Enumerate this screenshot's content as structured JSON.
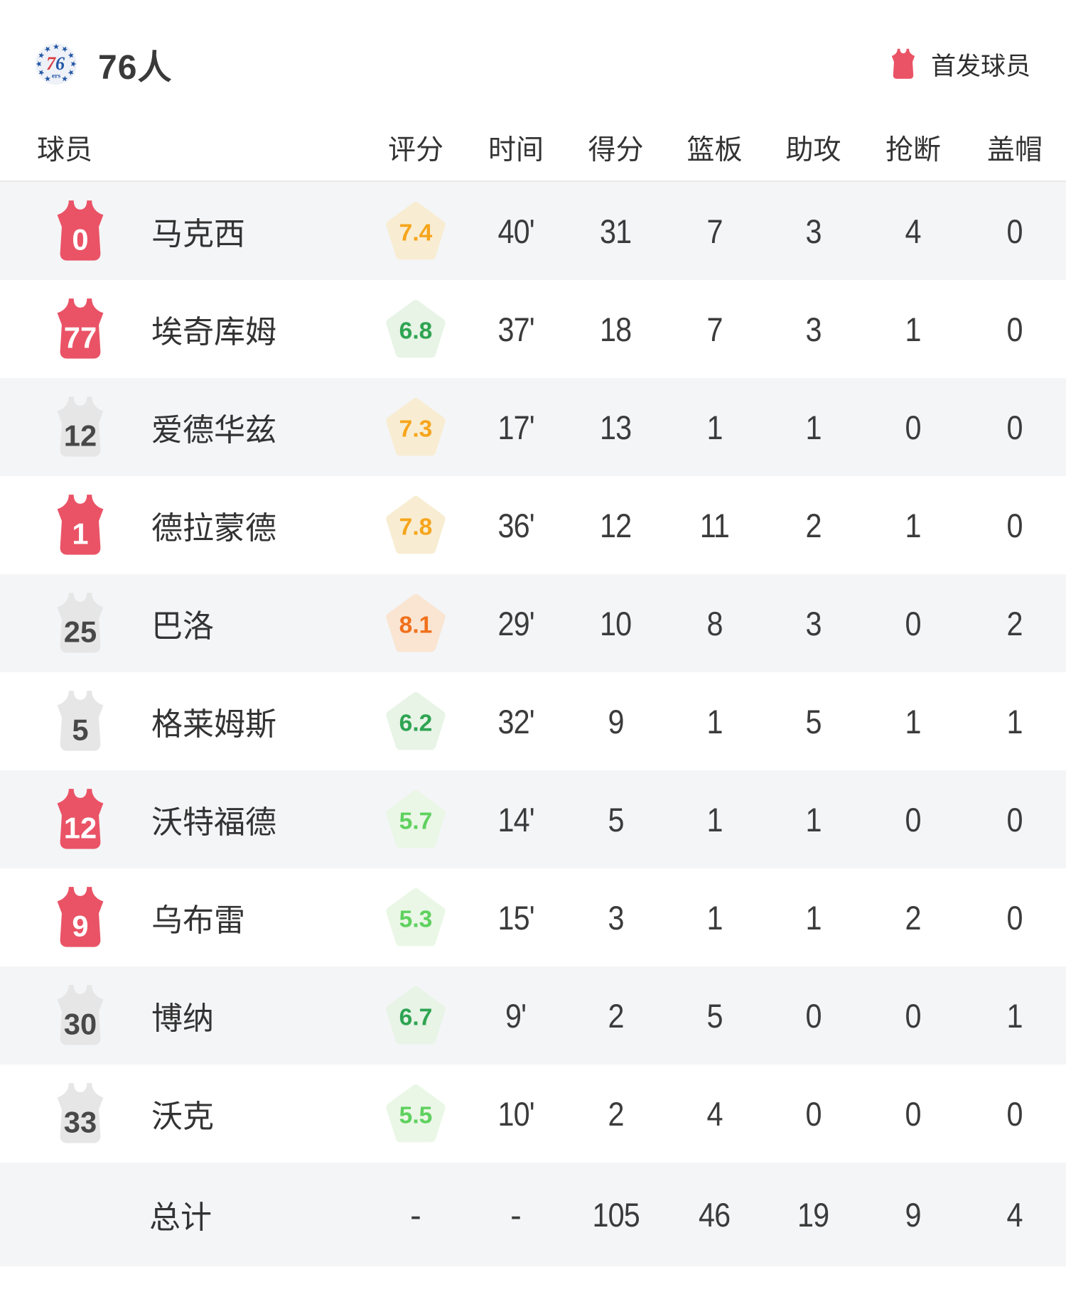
{
  "header": {
    "team_name": "76人",
    "legend_label": "首发球员"
  },
  "logo": {
    "seven": "7",
    "six": "6",
    "ers": "ers"
  },
  "table": {
    "columns": [
      "球员",
      "评分",
      "时间",
      "得分",
      "篮板",
      "助攻",
      "抢断",
      "盖帽"
    ],
    "players": [
      {
        "number": "0",
        "starter": true,
        "name": "马克西",
        "rating": "7.4",
        "tier": "orange",
        "time": "40'",
        "pts": "31",
        "reb": "7",
        "ast": "3",
        "stl": "4",
        "blk": "0"
      },
      {
        "number": "77",
        "starter": true,
        "name": "埃奇库姆",
        "rating": "6.8",
        "tier": "green",
        "time": "37'",
        "pts": "18",
        "reb": "7",
        "ast": "3",
        "stl": "1",
        "blk": "0"
      },
      {
        "number": "12",
        "starter": false,
        "name": "爱德华兹",
        "rating": "7.3",
        "tier": "orange",
        "time": "17'",
        "pts": "13",
        "reb": "1",
        "ast": "1",
        "stl": "0",
        "blk": "0"
      },
      {
        "number": "1",
        "starter": true,
        "name": "德拉蒙德",
        "rating": "7.8",
        "tier": "orange",
        "time": "36'",
        "pts": "12",
        "reb": "11",
        "ast": "2",
        "stl": "1",
        "blk": "0"
      },
      {
        "number": "25",
        "starter": false,
        "name": "巴洛",
        "rating": "8.1",
        "tier": "red",
        "time": "29'",
        "pts": "10",
        "reb": "8",
        "ast": "3",
        "stl": "0",
        "blk": "2"
      },
      {
        "number": "5",
        "starter": false,
        "name": "格莱姆斯",
        "rating": "6.2",
        "tier": "green",
        "time": "32'",
        "pts": "9",
        "reb": "1",
        "ast": "5",
        "stl": "1",
        "blk": "1"
      },
      {
        "number": "12",
        "starter": true,
        "name": "沃特福德",
        "rating": "5.7",
        "tier": "lightgreen",
        "time": "14'",
        "pts": "5",
        "reb": "1",
        "ast": "1",
        "stl": "0",
        "blk": "0"
      },
      {
        "number": "9",
        "starter": true,
        "name": "乌布雷",
        "rating": "5.3",
        "tier": "lightgreen",
        "time": "15'",
        "pts": "3",
        "reb": "1",
        "ast": "1",
        "stl": "2",
        "blk": "0"
      },
      {
        "number": "30",
        "starter": false,
        "name": "博纳",
        "rating": "6.7",
        "tier": "green",
        "time": "9'",
        "pts": "2",
        "reb": "5",
        "ast": "0",
        "stl": "0",
        "blk": "1"
      },
      {
        "number": "33",
        "starter": false,
        "name": "沃克",
        "rating": "5.5",
        "tier": "lightgreen",
        "time": "10'",
        "pts": "2",
        "reb": "4",
        "ast": "0",
        "stl": "0",
        "blk": "0"
      }
    ],
    "total": {
      "label": "总计",
      "rating": "-",
      "time": "-",
      "pts": "105",
      "reb": "46",
      "ast": "19",
      "stl": "9",
      "blk": "4"
    }
  },
  "colors": {
    "starter_jersey": "#ea5366",
    "starter_number": "#ffffff",
    "bench_jersey": "#e6e6e6",
    "bench_number": "#484848",
    "row_alt_bg": "#f4f5f7",
    "rating_tiers": {
      "red": {
        "text": "#f0701b",
        "bg": "#fae5d2"
      },
      "orange": {
        "text": "#f6a51c",
        "bg": "#f8edd2"
      },
      "green": {
        "text": "#2fa452",
        "bg": "#e7f4e6"
      },
      "lightgreen": {
        "text": "#5fd15f",
        "bg": "#eaf7e6"
      }
    },
    "logo_blue": "#2458a7",
    "logo_red": "#d9393f"
  }
}
